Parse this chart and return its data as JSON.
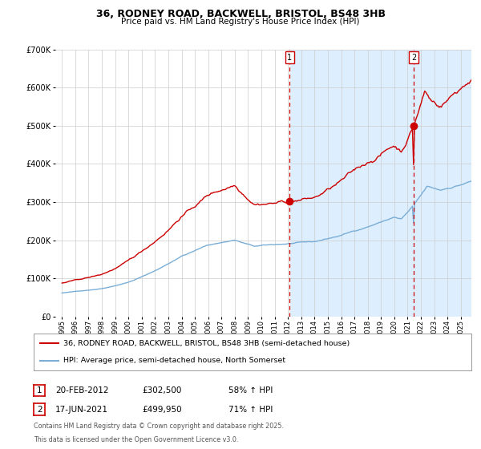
{
  "title1": "36, RODNEY ROAD, BACKWELL, BRISTOL, BS48 3HB",
  "title2": "Price paid vs. HM Land Registry's House Price Index (HPI)",
  "legend_line1": "36, RODNEY ROAD, BACKWELL, BRISTOL, BS48 3HB (semi-detached house)",
  "legend_line2": "HPI: Average price, semi-detached house, North Somerset",
  "marker1_date": "20-FEB-2012",
  "marker1_price": 302500,
  "marker1_label": "58% ↑ HPI",
  "marker2_date": "17-JUN-2021",
  "marker2_price": 499950,
  "marker2_label": "71% ↑ HPI",
  "footnote1": "Contains HM Land Registry data © Crown copyright and database right 2025.",
  "footnote2": "This data is licensed under the Open Government Licence v3.0.",
  "line_color_red": "#cc0000",
  "line_color_blue": "#7aaed6",
  "plot_bg": "#ffffff",
  "shade_bg": "#ddeeff",
  "vline_color": "#cc0000",
  "grid_color": "#cccccc",
  "marker1_x": 2012.13,
  "marker2_x": 2021.46,
  "ylim": [
    0,
    700000
  ],
  "xlim_start": 1994.5,
  "xlim_end": 2025.8,
  "yticks": [
    0,
    100000,
    200000,
    300000,
    400000,
    500000,
    600000,
    700000
  ],
  "xtick_years": [
    1995,
    1996,
    1997,
    1998,
    1999,
    2000,
    2001,
    2002,
    2003,
    2004,
    2005,
    2006,
    2007,
    2008,
    2009,
    2010,
    2011,
    2012,
    2013,
    2014,
    2015,
    2016,
    2017,
    2018,
    2019,
    2020,
    2021,
    2022,
    2023,
    2024,
    2025
  ]
}
